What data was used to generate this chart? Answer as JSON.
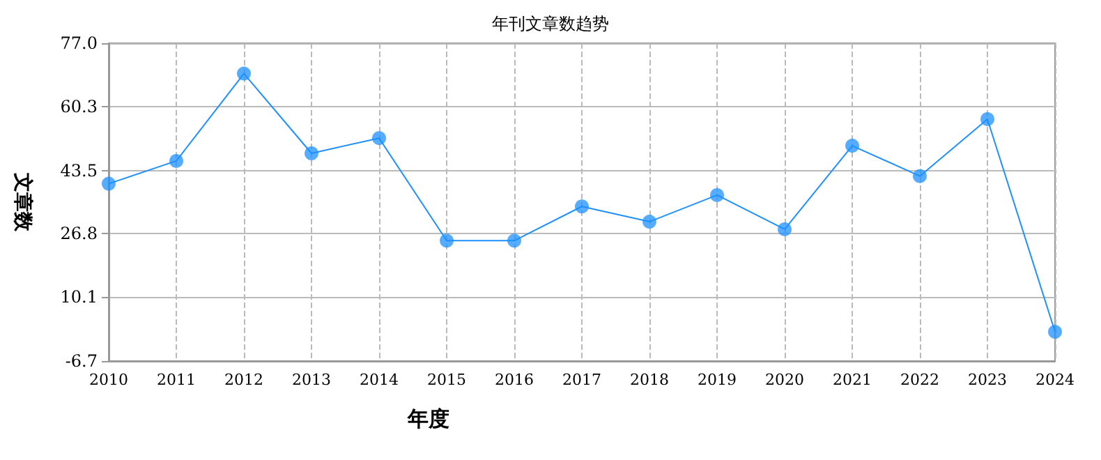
{
  "chart_data": {
    "type": "line",
    "title": "年刊文章数趋势",
    "xlabel": "年度",
    "ylabel": "文章数",
    "categories": [
      "2010",
      "2011",
      "2012",
      "2013",
      "2014",
      "2015",
      "2016",
      "2017",
      "2018",
      "2019",
      "2020",
      "2021",
      "2022",
      "2023",
      "2024"
    ],
    "series": [
      {
        "color": "#1e90ff",
        "values": [
          40,
          46,
          69,
          48,
          52,
          25,
          25,
          34,
          30,
          37,
          28,
          50,
          42,
          57,
          1
        ]
      }
    ],
    "ylim": [
      -6.7,
      77
    ],
    "yticks": [
      {
        "value": -6.7,
        "label": "-6.7"
      },
      {
        "value": 10.1,
        "label": "10.1"
      },
      {
        "value": 26.8,
        "label": "26.8"
      },
      {
        "value": 43.5,
        "label": "43.5"
      },
      {
        "value": 60.3,
        "label": "60.3"
      },
      {
        "value": 77,
        "label": "77.0"
      }
    ],
    "grid": true,
    "marker": "circle",
    "line_style": "solid"
  }
}
